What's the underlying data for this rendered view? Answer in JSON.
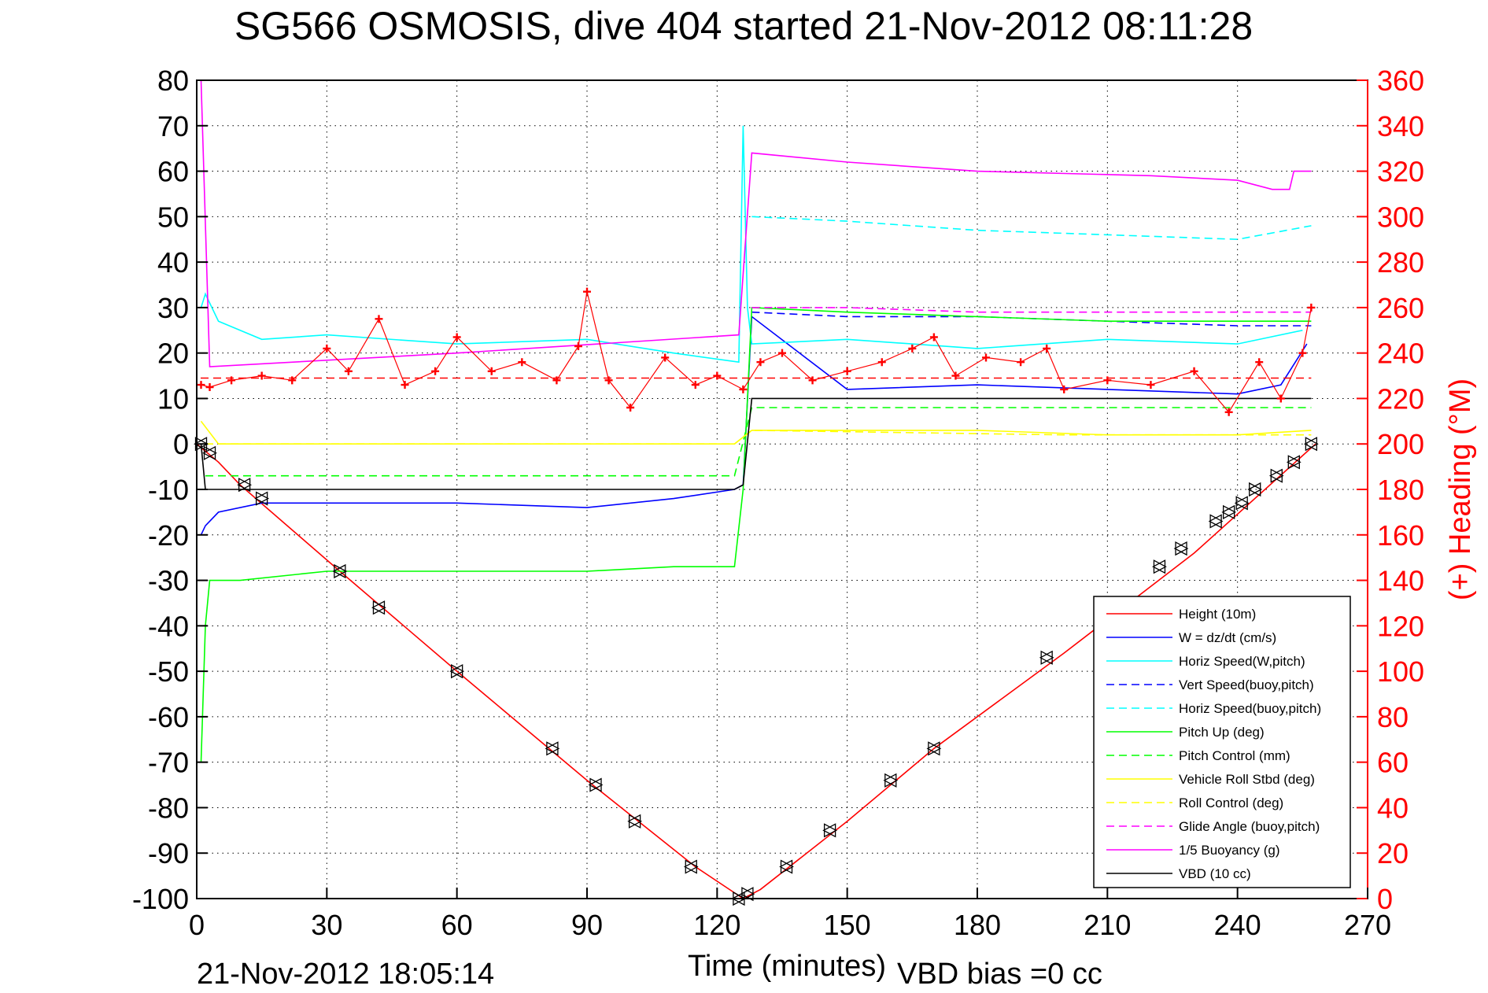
{
  "chart_data": {
    "type": "line",
    "title": "SG566 OSMOSIS, dive 404 started 21-Nov-2012 08:11:28",
    "xlabel": "Time (minutes)",
    "ylabel": "",
    "y2label": "(+) Heading (°M)",
    "footer_left": "21-Nov-2012 18:05:14",
    "footer_right": "VBD bias =0 cc",
    "xlim": [
      0,
      270
    ],
    "ylim": [
      -100,
      80
    ],
    "y2lim": [
      0,
      360
    ],
    "xticks": [
      0,
      30,
      60,
      90,
      120,
      150,
      180,
      210,
      240,
      270
    ],
    "yticks": [
      80,
      70,
      60,
      50,
      40,
      30,
      20,
      10,
      0,
      -10,
      -20,
      -30,
      -40,
      -50,
      -60,
      -70,
      -80,
      -90,
      -100
    ],
    "y2ticks": [
      360,
      340,
      320,
      300,
      280,
      260,
      240,
      220,
      200,
      180,
      160,
      140,
      120,
      100,
      80,
      60,
      40,
      20,
      0
    ],
    "grid": true,
    "legend_position": "lower-right",
    "colors": {
      "red": "#ff0000",
      "blue": "#0000ff",
      "cyan": "#00ffff",
      "green": "#00ff00",
      "yellow": "#ffff00",
      "magenta": "#ff00ff",
      "black": "#000000"
    },
    "series": [
      {
        "name": "Height (10m)",
        "color": "#ff0000",
        "style": "solid",
        "x": [
          0,
          5,
          10,
          33,
          60,
          90,
          115,
          126,
          130,
          150,
          170,
          200,
          230,
          258
        ],
        "values": [
          0,
          -4,
          -9,
          -28,
          -50,
          -74,
          -93,
          -100,
          -98,
          -83,
          -67,
          -46,
          -24,
          0
        ]
      },
      {
        "name": "W = dz/dt (cm/s)",
        "color": "#0000ff",
        "style": "solid",
        "x": [
          1,
          2,
          5,
          15,
          30,
          60,
          90,
          110,
          124,
          126,
          128,
          150,
          180,
          210,
          240,
          250,
          256
        ],
        "values": [
          -20,
          -18,
          -15,
          -13,
          -13,
          -13,
          -14,
          -12,
          -10,
          -9,
          28,
          12,
          13,
          12,
          11,
          13,
          22
        ]
      },
      {
        "name": "Horiz Speed(W,pitch)",
        "color": "#00ffff",
        "style": "solid",
        "x": [
          1,
          2,
          5,
          15,
          30,
          60,
          90,
          110,
          125,
          126,
          127,
          128,
          150,
          180,
          210,
          240,
          255
        ],
        "values": [
          30,
          33,
          27,
          23,
          24,
          22,
          23,
          20,
          18,
          70,
          30,
          22,
          23,
          21,
          23,
          22,
          25
        ]
      },
      {
        "name": "Vert Speed(buoy,pitch)",
        "color": "#0000ff",
        "style": "dashed",
        "x": [
          128,
          150,
          180,
          210,
          240,
          257
        ],
        "values": [
          29,
          28,
          28,
          27,
          26,
          26
        ]
      },
      {
        "name": "Horiz Speed(buoy,pitch)",
        "color": "#00ffff",
        "style": "dashed",
        "x": [
          128,
          150,
          180,
          210,
          240,
          257
        ],
        "values": [
          50,
          49,
          47,
          46,
          45,
          48
        ]
      },
      {
        "name": "Pitch Up (deg)",
        "color": "#00ff00",
        "style": "solid",
        "x": [
          1,
          2,
          3,
          10,
          30,
          60,
          90,
          110,
          124,
          126,
          128,
          150,
          180,
          210,
          240,
          257
        ],
        "values": [
          -70,
          -40,
          -30,
          -30,
          -28,
          -28,
          -28,
          -27,
          -27,
          -10,
          30,
          29,
          28,
          27,
          27,
          27
        ]
      },
      {
        "name": "Pitch Control (mm)",
        "color": "#00ff00",
        "style": "dashed",
        "x": [
          2,
          60,
          124,
          128,
          200,
          257
        ],
        "values": [
          -7,
          -7,
          -7,
          8,
          8,
          8
        ]
      },
      {
        "name": "Vehicle Roll Stbd (deg)",
        "color": "#ffff00",
        "style": "solid",
        "x": [
          1,
          5,
          30,
          60,
          90,
          124,
          128,
          150,
          180,
          210,
          240,
          257
        ],
        "values": [
          5,
          0,
          0,
          0,
          0,
          0,
          3,
          3,
          3,
          2,
          2,
          3
        ]
      },
      {
        "name": "Roll Control (deg)",
        "color": "#ffff00",
        "style": "dashed",
        "x": [
          2,
          60,
          124,
          128,
          200,
          257
        ],
        "values": [
          0,
          0,
          0,
          3,
          2,
          2
        ]
      },
      {
        "name": "Glide Angle (buoy,pitch)",
        "color": "#ff00ff",
        "style": "dashed",
        "x": [
          128,
          150,
          180,
          210,
          240,
          257
        ],
        "values": [
          30,
          30,
          29,
          29,
          29,
          29
        ]
      },
      {
        "name": "1/5 Buoyancy (g)",
        "color": "#ff00ff",
        "style": "solid",
        "x": [
          1,
          3,
          60,
          125,
          128,
          150,
          180,
          220,
          240,
          248,
          252,
          253,
          257
        ],
        "values": [
          80,
          17,
          20,
          24,
          64,
          62,
          60,
          59,
          58,
          56,
          56,
          60,
          60
        ]
      },
      {
        "name": "VBD (10 cc)",
        "color": "#000000",
        "style": "solid",
        "x": [
          1,
          2,
          124,
          126,
          128,
          257
        ],
        "values": [
          0,
          -10,
          -10,
          -9,
          10,
          10
        ]
      }
    ],
    "heading": {
      "color": "#ff0000",
      "marker": "+",
      "axis": "right",
      "x": [
        1,
        3,
        8,
        15,
        22,
        30,
        35,
        42,
        48,
        55,
        60,
        68,
        75,
        83,
        88,
        90,
        95,
        100,
        108,
        115,
        120,
        126,
        130,
        135,
        142,
        150,
        158,
        165,
        170,
        175,
        182,
        190,
        196,
        200,
        210,
        220,
        230,
        238,
        245,
        250,
        255,
        257
      ],
      "values": [
        226,
        225,
        228,
        230,
        228,
        242,
        232,
        255,
        226,
        232,
        247,
        232,
        236,
        228,
        243,
        267,
        228,
        216,
        238,
        226,
        230,
        224,
        236,
        240,
        228,
        232,
        236,
        242,
        247,
        230,
        238,
        236,
        242,
        224,
        228,
        226,
        232,
        214,
        236,
        220,
        240,
        260
      ]
    },
    "heading_reference": {
      "value": 229,
      "style": "dashed",
      "color": "#ff0000"
    },
    "depth_markers": {
      "marker": "triangle",
      "x": [
        1,
        3,
        11,
        15,
        33,
        42,
        60,
        82,
        92,
        101,
        114,
        125,
        127,
        136,
        146,
        160,
        170,
        196,
        222,
        227,
        235,
        238,
        241,
        244,
        249,
        253,
        257
      ],
      "values": [
        0,
        -2,
        -9,
        -12,
        -28,
        -36,
        -50,
        -67,
        -75,
        -83,
        -93,
        -100,
        -99,
        -93,
        -85,
        -74,
        -67,
        -47,
        -27,
        -23,
        -17,
        -15,
        -13,
        -10,
        -7,
        -4,
        0
      ]
    }
  }
}
